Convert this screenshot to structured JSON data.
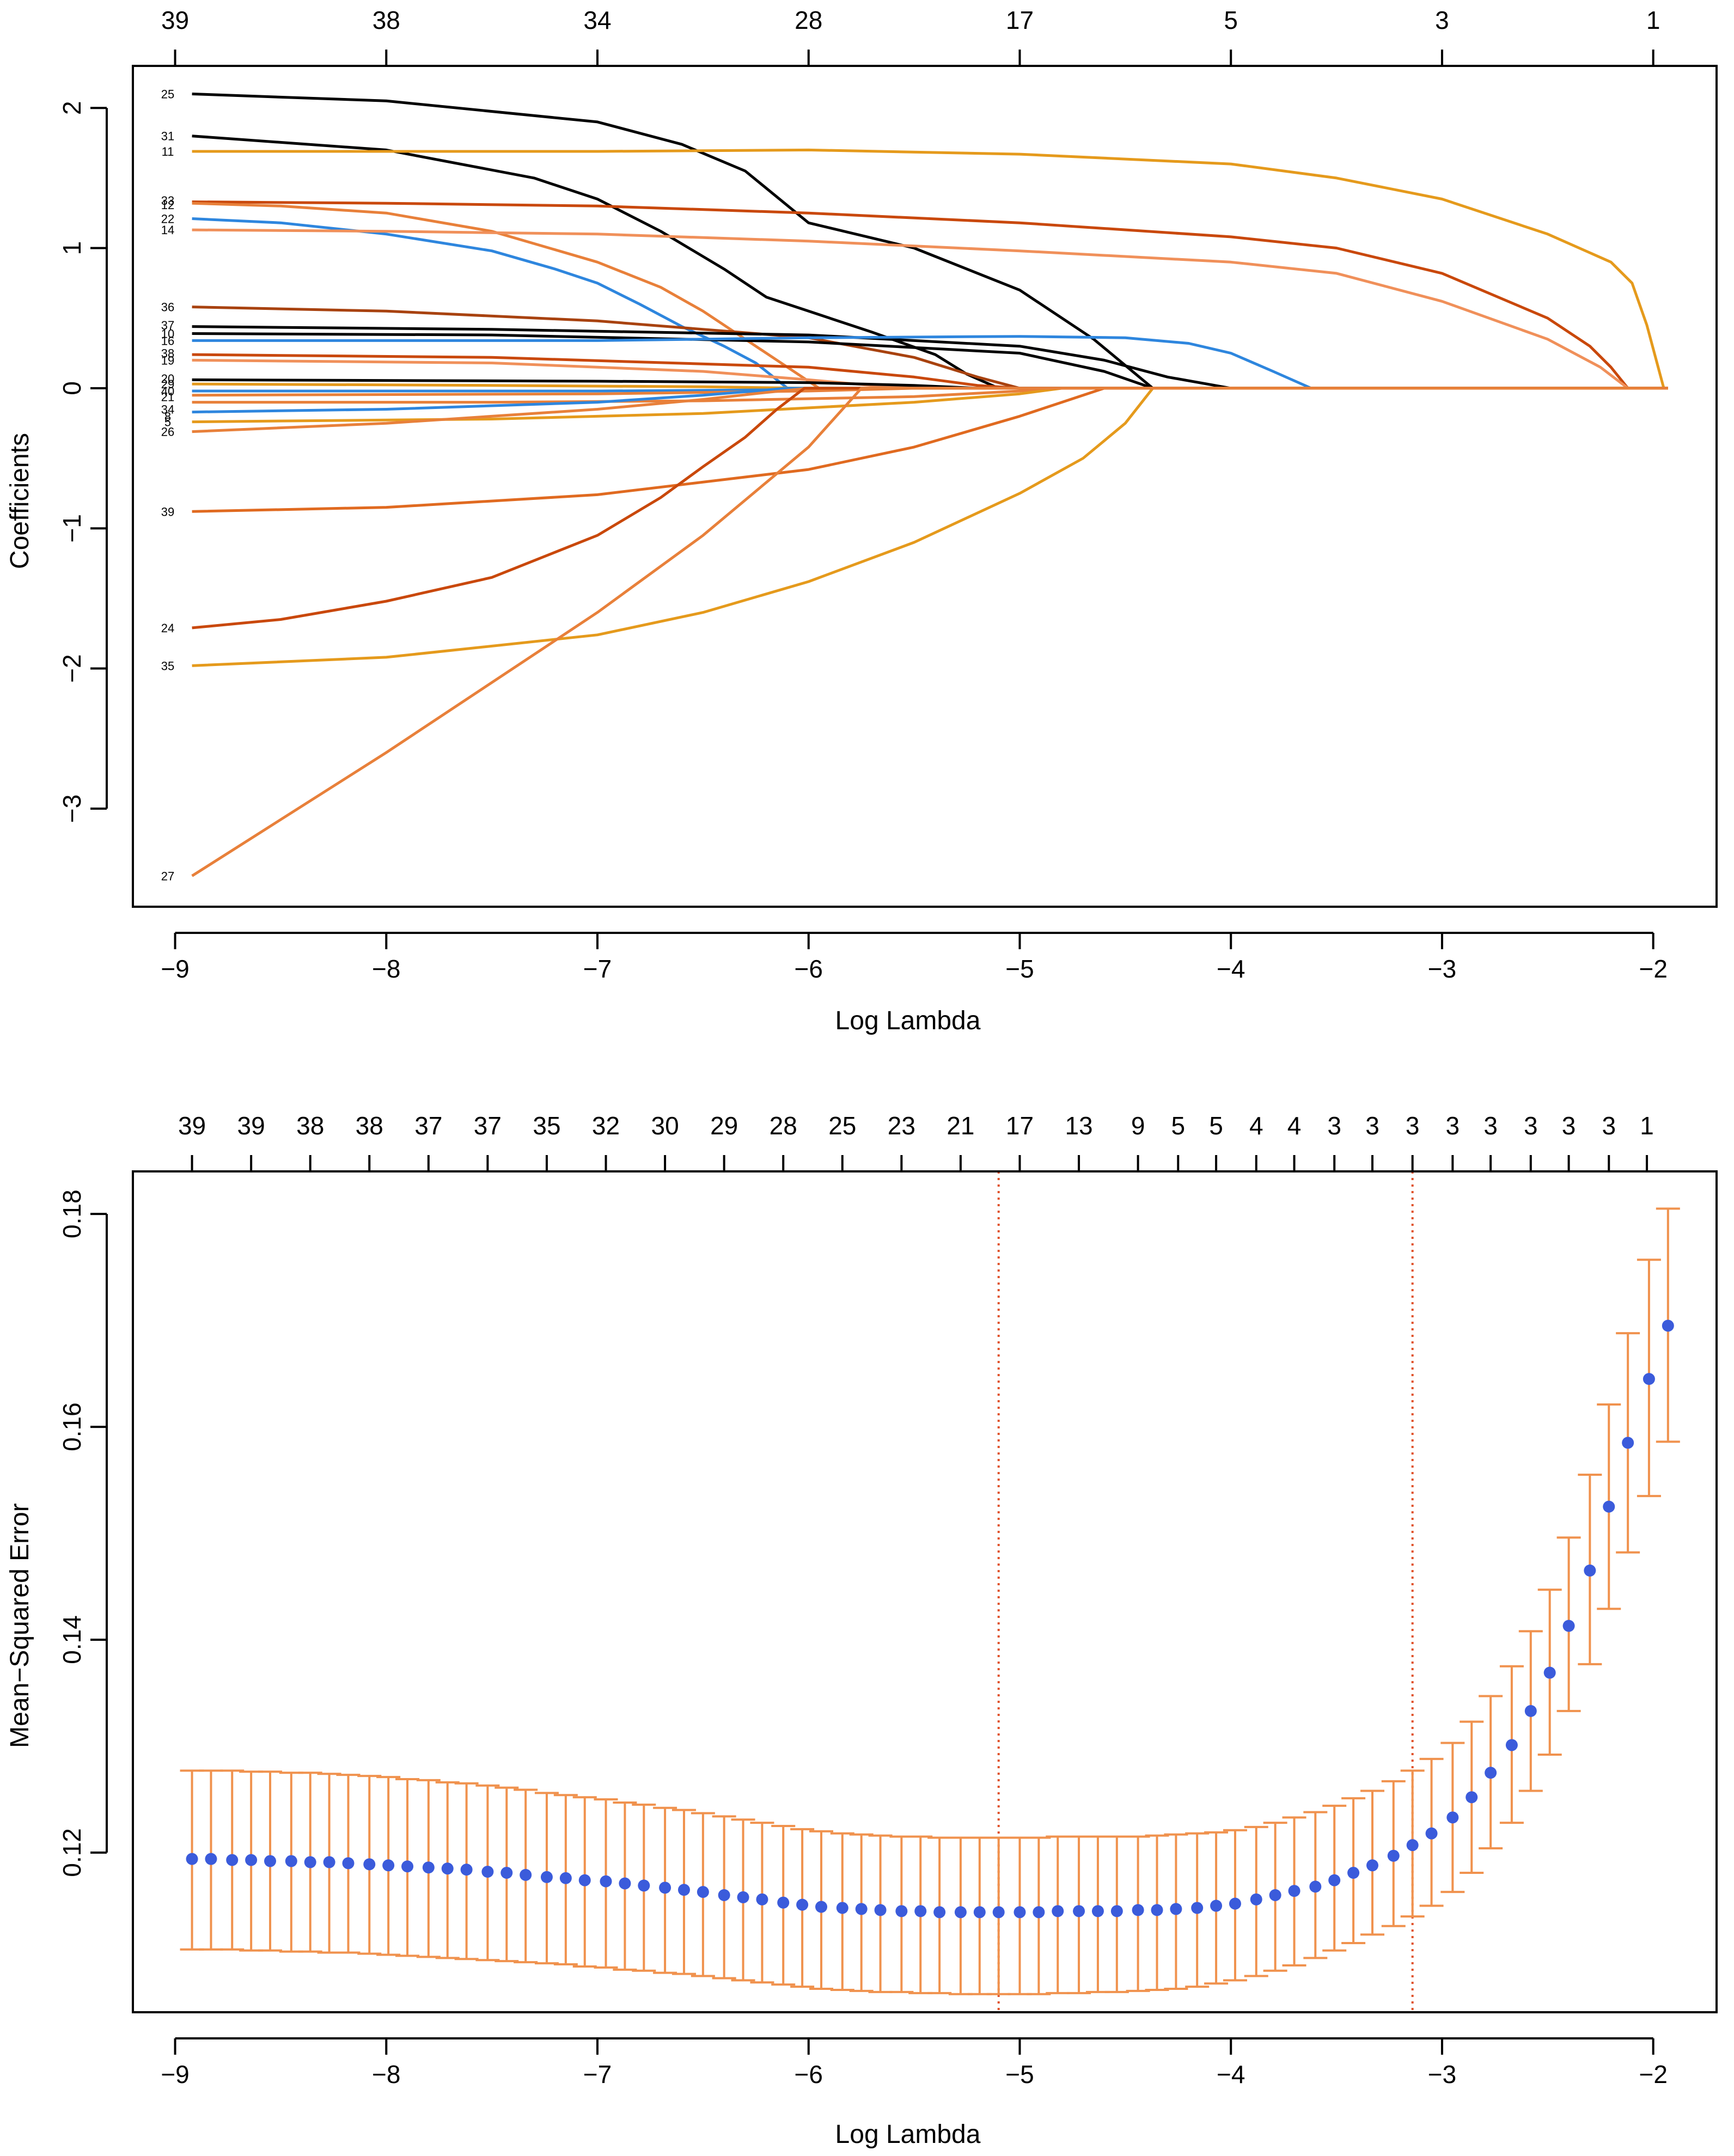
{
  "chart_data": [
    {
      "type": "line",
      "title": "",
      "xlabel": "Log Lambda",
      "ylabel": "Coefficients",
      "xlim": [
        -9.2,
        -1.7
      ],
      "ylim": [
        -3.7,
        2.3
      ],
      "x_ticks": [
        -9,
        -8,
        -7,
        -6,
        -5,
        -4,
        -3,
        -2
      ],
      "x_tick_labels": [
        "−9",
        "−8",
        "−7",
        "−6",
        "−5",
        "−4",
        "−3",
        "−2"
      ],
      "y_ticks": [
        2,
        1,
        0,
        -1,
        -2,
        -3
      ],
      "y_tick_labels": [
        "2",
        "1",
        "0",
        "−1",
        "−2",
        "−3"
      ],
      "top_axis": {
        "positions": [
          -9,
          -8,
          -7,
          -6,
          -5,
          -4,
          -3,
          -2
        ],
        "labels": [
          "39",
          "38",
          "34",
          "28",
          "17",
          "5",
          "3",
          "1"
        ]
      },
      "grid": false,
      "series": [
        {
          "name": "25",
          "color": "#000000",
          "x": [
            -8.92,
            -8.0,
            -7.0,
            -6.6,
            -6.3,
            -6.0,
            -5.5,
            -5.0,
            -4.65,
            -4.37
          ],
          "y": [
            2.1,
            2.05,
            1.9,
            1.74,
            1.55,
            1.18,
            1.0,
            0.7,
            0.35,
            0.0
          ]
        },
        {
          "name": "31",
          "color": "#000000",
          "x": [
            -8.92,
            -8.0,
            -7.3,
            -7.0,
            -6.7,
            -6.4,
            -6.2,
            -6.0,
            -5.7,
            -5.4,
            -5.25,
            -5.1
          ],
          "y": [
            1.8,
            1.7,
            1.5,
            1.35,
            1.12,
            0.85,
            0.65,
            0.55,
            0.4,
            0.24,
            0.1,
            0.0
          ]
        },
        {
          "name": "11",
          "color": "#E59A1C",
          "x": [
            -8.92,
            -7.0,
            -6.0,
            -5.0,
            -4.0,
            -3.5,
            -3.0,
            -2.5,
            -2.2,
            -2.1,
            -2.03,
            -1.95
          ],
          "y": [
            1.69,
            1.69,
            1.7,
            1.67,
            1.6,
            1.5,
            1.35,
            1.1,
            0.9,
            0.75,
            0.45,
            0.0
          ]
        },
        {
          "name": "33",
          "color": "#C9480B",
          "x": [
            -8.92,
            -8.0,
            -7.0,
            -6.0,
            -5.0,
            -4.0,
            -3.5,
            -3.0,
            -2.5,
            -2.3,
            -2.2,
            -2.12
          ],
          "y": [
            1.33,
            1.32,
            1.3,
            1.25,
            1.18,
            1.08,
            1.0,
            0.82,
            0.5,
            0.3,
            0.15,
            0.0
          ]
        },
        {
          "name": "12",
          "color": "#E8803A",
          "x": [
            -8.92,
            -8.5,
            -8.0,
            -7.5,
            -7.0,
            -6.7,
            -6.5,
            -6.3,
            -6.1,
            -5.95
          ],
          "y": [
            1.32,
            1.3,
            1.25,
            1.12,
            0.9,
            0.72,
            0.55,
            0.35,
            0.15,
            0.0
          ]
        },
        {
          "name": "22",
          "color": "#2E86DE",
          "x": [
            -8.92,
            -8.5,
            -8.0,
            -7.5,
            -7.2,
            -7.0,
            -6.8,
            -6.6,
            -6.4,
            -6.25,
            -6.1
          ],
          "y": [
            1.21,
            1.18,
            1.1,
            0.98,
            0.85,
            0.75,
            0.6,
            0.44,
            0.3,
            0.18,
            0.0
          ]
        },
        {
          "name": "14",
          "color": "#F0905A",
          "x": [
            -8.92,
            -8.0,
            -7.0,
            -6.0,
            -5.0,
            -4.0,
            -3.5,
            -3.0,
            -2.5,
            -2.25,
            -2.12
          ],
          "y": [
            1.13,
            1.12,
            1.1,
            1.05,
            0.98,
            0.9,
            0.82,
            0.62,
            0.35,
            0.15,
            0.0
          ]
        },
        {
          "name": "36",
          "color": "#A8420F",
          "x": [
            -8.92,
            -8.0,
            -7.0,
            -6.0,
            -5.5,
            -5.2,
            -5.0
          ],
          "y": [
            0.58,
            0.55,
            0.48,
            0.36,
            0.22,
            0.08,
            0.0
          ]
        },
        {
          "name": "37",
          "color": "#000000",
          "x": [
            -8.92,
            -7.5,
            -6.0,
            -5.0,
            -4.6,
            -4.3,
            -4.0
          ],
          "y": [
            0.44,
            0.42,
            0.38,
            0.3,
            0.2,
            0.08,
            0.0
          ]
        },
        {
          "name": "10",
          "color": "#000000",
          "x": [
            -8.92,
            -7.5,
            -6.0,
            -5.0,
            -4.6,
            -4.37
          ],
          "y": [
            0.39,
            0.38,
            0.33,
            0.25,
            0.12,
            0.0
          ]
        },
        {
          "name": "16",
          "color": "#2E86DE",
          "x": [
            -8.92,
            -7.0,
            -6.0,
            -5.0,
            -4.5,
            -4.2,
            -4.0,
            -3.8,
            -3.62
          ],
          "y": [
            0.34,
            0.34,
            0.36,
            0.37,
            0.36,
            0.32,
            0.25,
            0.12,
            0.0
          ]
        },
        {
          "name": "38",
          "color": "#C9480B",
          "x": [
            -8.92,
            -7.5,
            -6.0,
            -5.5,
            -5.2,
            -5.0
          ],
          "y": [
            0.24,
            0.22,
            0.15,
            0.08,
            0.02,
            0.0
          ]
        },
        {
          "name": "19",
          "color": "#F0905A",
          "x": [
            -8.92,
            -7.5,
            -6.5,
            -6.0,
            -5.7,
            -5.5
          ],
          "y": [
            0.2,
            0.18,
            0.12,
            0.06,
            0.02,
            0.0
          ]
        },
        {
          "name": "20",
          "color": "#000000",
          "x": [
            -8.92,
            -7.0,
            -6.0,
            -5.5,
            -5.2
          ],
          "y": [
            0.06,
            0.05,
            0.04,
            0.02,
            0.0
          ]
        },
        {
          "name": "29",
          "color": "#E59A1C",
          "x": [
            -8.92,
            -7.5,
            -6.5,
            -6.0
          ],
          "y": [
            0.03,
            0.02,
            0.01,
            0.0
          ]
        },
        {
          "name": "40",
          "color": "#2E86DE",
          "x": [
            -8.92,
            -7.0,
            -6.0,
            -5.5
          ],
          "y": [
            -0.02,
            -0.02,
            -0.01,
            0.0
          ]
        },
        {
          "name": "21",
          "color": "#E8803A",
          "x": [
            -8.92,
            -7.0,
            -6.0,
            -5.5
          ],
          "y": [
            -0.05,
            -0.04,
            -0.02,
            0.0
          ]
        },
        {
          "name": "34",
          "color": "#E8803A",
          "x": [
            -8.92,
            -7.5,
            -6.5,
            -5.5,
            -5.0,
            -4.8
          ],
          "y": [
            -0.1,
            -0.1,
            -0.09,
            -0.06,
            -0.02,
            0.0
          ]
        },
        {
          "name": "8",
          "color": "#2E86DE",
          "x": [
            -8.92,
            -8.0,
            -7.0,
            -6.5,
            -6.1
          ],
          "y": [
            -0.17,
            -0.15,
            -0.1,
            -0.05,
            0.0
          ]
        },
        {
          "name": "5",
          "color": "#E59A1C",
          "x": [
            -8.92,
            -7.5,
            -6.5,
            -5.5,
            -5.0,
            -4.8
          ],
          "y": [
            -0.24,
            -0.22,
            -0.18,
            -0.1,
            -0.04,
            0.0
          ]
        },
        {
          "name": "26",
          "color": "#E8803A",
          "x": [
            -8.92,
            -8.0,
            -7.0,
            -6.5,
            -6.2,
            -6.0
          ],
          "y": [
            -0.31,
            -0.25,
            -0.15,
            -0.08,
            -0.03,
            0.0
          ]
        },
        {
          "name": "39",
          "color": "#E06A20",
          "x": [
            -8.92,
            -8.0,
            -7.0,
            -6.0,
            -5.5,
            -5.0,
            -4.7,
            -4.6
          ],
          "y": [
            -0.88,
            -0.85,
            -0.76,
            -0.58,
            -0.42,
            -0.2,
            -0.05,
            0.0
          ]
        },
        {
          "name": "24",
          "color": "#C9480B",
          "x": [
            -8.92,
            -8.5,
            -8.0,
            -7.5,
            -7.0,
            -6.7,
            -6.5,
            -6.3,
            -6.15,
            -6.02
          ],
          "y": [
            -1.71,
            -1.65,
            -1.52,
            -1.35,
            -1.05,
            -0.78,
            -0.56,
            -0.35,
            -0.15,
            0.0
          ]
        },
        {
          "name": "35",
          "color": "#E59A1C",
          "x": [
            -8.92,
            -8.0,
            -7.0,
            -6.5,
            -6.0,
            -5.5,
            -5.0,
            -4.7,
            -4.5,
            -4.37
          ],
          "y": [
            -1.98,
            -1.92,
            -1.76,
            -1.6,
            -1.38,
            -1.1,
            -0.75,
            -0.5,
            -0.25,
            0.0
          ]
        },
        {
          "name": "27",
          "color": "#E8803A",
          "x": [
            -8.92,
            -8.0,
            -7.0,
            -6.5,
            -6.0,
            -5.75
          ],
          "y": [
            -3.48,
            -2.6,
            -1.6,
            -1.05,
            -0.42,
            0.0
          ]
        }
      ],
      "left_labels": [
        {
          "text": "25",
          "y": 2.1
        },
        {
          "text": "31",
          "y": 1.8
        },
        {
          "text": "11",
          "y": 1.69
        },
        {
          "text": "33",
          "y": 1.34
        },
        {
          "text": "12",
          "y": 1.31
        },
        {
          "text": "22",
          "y": 1.21
        },
        {
          "text": "14",
          "y": 1.13
        },
        {
          "text": "36",
          "y": 0.58
        },
        {
          "text": "37",
          "y": 0.45
        },
        {
          "text": "10",
          "y": 0.39
        },
        {
          "text": "16",
          "y": 0.34
        },
        {
          "text": "38",
          "y": 0.25
        },
        {
          "text": "19",
          "y": 0.2
        },
        {
          "text": "20",
          "y": 0.07
        },
        {
          "text": "29",
          "y": 0.03
        },
        {
          "text": "40",
          "y": -0.02
        },
        {
          "text": "21",
          "y": -0.06
        },
        {
          "text": "34",
          "y": -0.15
        },
        {
          "text": "8",
          "y": -0.2
        },
        {
          "text": "5",
          "y": -0.24
        },
        {
          "text": "26",
          "y": -0.31
        },
        {
          "text": "39",
          "y": -0.88
        },
        {
          "text": "24",
          "y": -1.71
        },
        {
          "text": "35",
          "y": -1.98
        },
        {
          "text": "27",
          "y": -3.48
        }
      ]
    },
    {
      "type": "scatter",
      "title": "",
      "xlabel": "Log Lambda",
      "ylabel": "Mean−Squared Error",
      "xlim": [
        -9.2,
        -1.7
      ],
      "ylim": [
        0.105,
        0.184
      ],
      "x_ticks": [
        -9,
        -8,
        -7,
        -6,
        -5,
        -4,
        -3,
        -2
      ],
      "x_tick_labels": [
        "−9",
        "−8",
        "−7",
        "−6",
        "−5",
        "−4",
        "−3",
        "−2"
      ],
      "y_ticks": [
        0.12,
        0.14,
        0.16,
        0.18
      ],
      "y_tick_labels": [
        "0.12",
        "0.14",
        "0.16",
        "0.18"
      ],
      "top_axis": {
        "positions": [
          -8.92,
          -8.64,
          -8.36,
          -8.08,
          -7.8,
          -7.52,
          -7.24,
          -6.96,
          -6.68,
          -6.4,
          -6.12,
          -5.84,
          -5.56,
          -5.28,
          -5.0,
          -4.72,
          -4.44,
          -4.25,
          -4.07,
          -3.88,
          -3.7,
          -3.51,
          -3.33,
          -3.14,
          -2.95,
          -2.77,
          -2.58,
          -2.4,
          -2.21,
          -2.03
        ],
        "labels": [
          "39",
          "39",
          "38",
          "38",
          "37",
          "37",
          "35",
          "32",
          "30",
          "29",
          "28",
          "25",
          "23",
          "21",
          "17",
          "13",
          "9",
          "5",
          "5",
          "4",
          "4",
          "3",
          "3",
          "3",
          "3",
          "3",
          "3",
          "3",
          "3",
          "1"
        ]
      },
      "point_color": "#3B5BDB",
      "error_bar_color": "#F0924E",
      "vlines": [
        {
          "x": -5.1,
          "color": "#E0522A",
          "style": "dotted"
        },
        {
          "x": -3.14,
          "color": "#E0522A",
          "style": "dotted"
        }
      ],
      "x": [
        -8.92,
        -8.83,
        -8.73,
        -8.64,
        -8.55,
        -8.45,
        -8.36,
        -8.27,
        -8.18,
        -8.08,
        -7.99,
        -7.9,
        -7.8,
        -7.71,
        -7.62,
        -7.52,
        -7.43,
        -7.34,
        -7.24,
        -7.15,
        -7.06,
        -6.96,
        -6.87,
        -6.78,
        -6.68,
        -6.59,
        -6.5,
        -6.4,
        -6.31,
        -6.22,
        -6.12,
        -6.03,
        -5.94,
        -5.84,
        -5.75,
        -5.66,
        -5.56,
        -5.47,
        -5.38,
        -5.28,
        -5.19,
        -5.1,
        -5.0,
        -4.91,
        -4.82,
        -4.72,
        -4.63,
        -4.54,
        -4.44,
        -4.35,
        -4.26,
        -4.16,
        -4.07,
        -3.98,
        -3.88,
        -3.79,
        -3.7,
        -3.6,
        -3.51,
        -3.42,
        -3.33,
        -3.23,
        -3.14,
        -3.05,
        -2.95,
        -2.86,
        -2.77,
        -2.67,
        -2.58,
        -2.49,
        -2.4,
        -2.3,
        -2.21,
        -2.12,
        -2.02,
        -1.93
      ],
      "values": [
        0.1194,
        0.1194,
        0.1193,
        0.1193,
        0.1192,
        0.1192,
        0.1191,
        0.1191,
        0.119,
        0.1189,
        0.1188,
        0.1187,
        0.1186,
        0.1185,
        0.1184,
        0.1182,
        0.1181,
        0.1179,
        0.1177,
        0.1176,
        0.1174,
        0.1173,
        0.1171,
        0.1169,
        0.1167,
        0.1165,
        0.1163,
        0.116,
        0.1158,
        0.1156,
        0.1153,
        0.1151,
        0.1149,
        0.1148,
        0.1147,
        0.1146,
        0.1145,
        0.1145,
        0.1144,
        0.1144,
        0.1144,
        0.1144,
        0.1144,
        0.1144,
        0.1145,
        0.1145,
        0.1145,
        0.1145,
        0.1146,
        0.1146,
        0.1147,
        0.1148,
        0.115,
        0.1152,
        0.1156,
        0.116,
        0.1164,
        0.1168,
        0.1174,
        0.1181,
        0.1188,
        0.1197,
        0.1207,
        0.1218,
        0.1233,
        0.1252,
        0.1275,
        0.1301,
        0.1333,
        0.1369,
        0.1413,
        0.1465,
        0.1525,
        0.1585,
        0.1645,
        0.1695
      ],
      "upper": [
        0.1277,
        0.1277,
        0.1277,
        0.1276,
        0.1276,
        0.1275,
        0.1275,
        0.1274,
        0.1273,
        0.1272,
        0.1271,
        0.1269,
        0.1268,
        0.1266,
        0.1265,
        0.1263,
        0.1261,
        0.1259,
        0.1256,
        0.1254,
        0.1252,
        0.125,
        0.1247,
        0.1245,
        0.1242,
        0.124,
        0.1237,
        0.1234,
        0.1231,
        0.1228,
        0.1225,
        0.1222,
        0.122,
        0.1218,
        0.1217,
        0.1216,
        0.1215,
        0.1215,
        0.1214,
        0.1214,
        0.1214,
        0.1214,
        0.1214,
        0.1214,
        0.1215,
        0.1215,
        0.1215,
        0.1215,
        0.1215,
        0.1216,
        0.1217,
        0.1218,
        0.1219,
        0.1221,
        0.1224,
        0.1228,
        0.1233,
        0.1238,
        0.1244,
        0.1251,
        0.1258,
        0.1267,
        0.1277,
        0.1288,
        0.1303,
        0.1323,
        0.1347,
        0.1375,
        0.1408,
        0.1447,
        0.1496,
        0.1555,
        0.1621,
        0.1688,
        0.1757,
        0.1805
      ],
      "lower": [
        0.1109,
        0.1109,
        0.1109,
        0.1108,
        0.1108,
        0.1107,
        0.1107,
        0.1106,
        0.1106,
        0.1105,
        0.1104,
        0.1103,
        0.1102,
        0.1101,
        0.11,
        0.1099,
        0.1098,
        0.1097,
        0.1096,
        0.1095,
        0.1093,
        0.1092,
        0.109,
        0.1089,
        0.1087,
        0.1086,
        0.1084,
        0.1082,
        0.108,
        0.1078,
        0.1076,
        0.1074,
        0.1072,
        0.1071,
        0.107,
        0.1069,
        0.1069,
        0.1068,
        0.1068,
        0.1067,
        0.1067,
        0.1067,
        0.1067,
        0.1067,
        0.1068,
        0.1068,
        0.1069,
        0.1069,
        0.107,
        0.1071,
        0.1072,
        0.1074,
        0.1077,
        0.108,
        0.1084,
        0.1089,
        0.1094,
        0.1101,
        0.1108,
        0.1115,
        0.1123,
        0.1131,
        0.114,
        0.115,
        0.1163,
        0.1181,
        0.1204,
        0.1228,
        0.1258,
        0.1292,
        0.1333,
        0.1377,
        0.1429,
        0.1482,
        0.1535,
        0.1586
      ]
    }
  ]
}
